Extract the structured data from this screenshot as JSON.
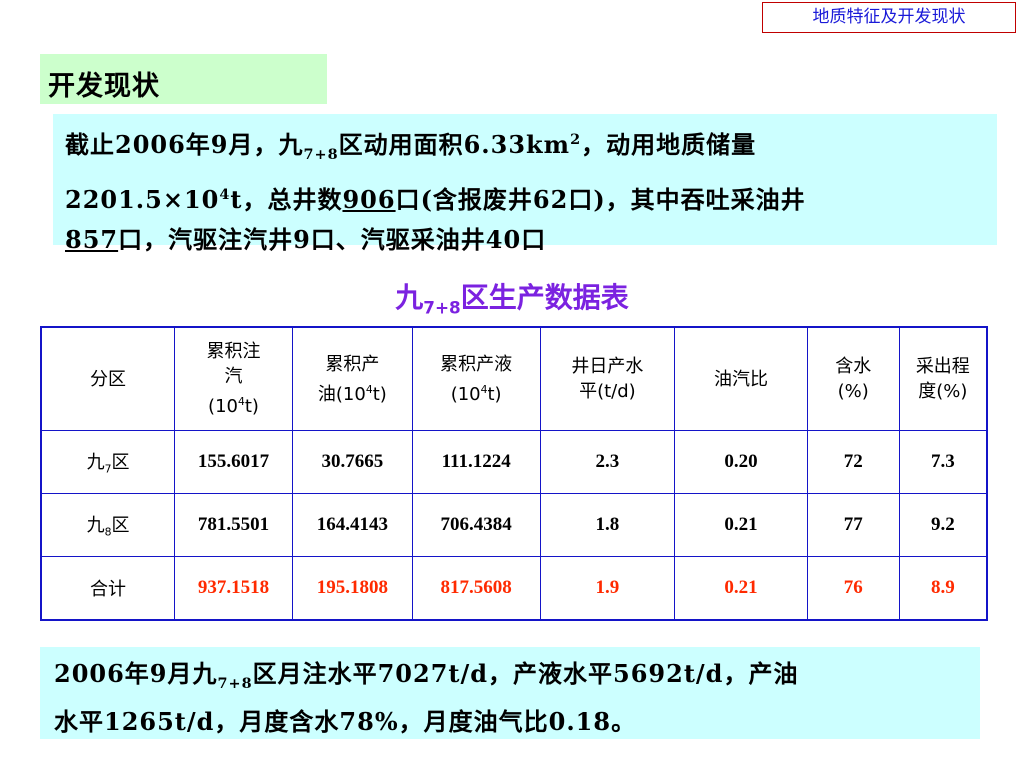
{
  "corner_tag": "地质特征及开发现状",
  "section_title": "开发现状",
  "intro": {
    "p1": "截止2006年9月，九",
    "sub1": "7+8",
    "p2": "区动用面积6.33km",
    "sup1": "2",
    "p3": "，动用地质储量",
    "p4": "2201.5×10",
    "sup2": "4",
    "p5": "t，总井数",
    "wells_total": "906",
    "p6": "口(含报废井62口)，其中吞吐采油井",
    "wells_huff": "857",
    "p7": "口，汽驱注汽井9口、汽驱采油井40口"
  },
  "table_title": {
    "pre": "九",
    "sub": "7+8",
    "post": "区生产数据表"
  },
  "table": {
    "headers": [
      {
        "a": "分区"
      },
      {
        "a": "累积注",
        "b": "汽",
        "c": "(10",
        "sup": "4",
        "d": "t)"
      },
      {
        "a": "累积产",
        "b": "油(10",
        "sup": "4",
        "d": "t)"
      },
      {
        "a": "累积产液",
        "b": "(10",
        "sup": "4",
        "d": "t)"
      },
      {
        "a": "井日产水",
        "b": "平(t/d)"
      },
      {
        "a": "油汽比"
      },
      {
        "a": "含水",
        "b": "(%)"
      },
      {
        "a": "采出程",
        "b": "度(%)"
      }
    ],
    "rows": [
      {
        "zone_pre": "九",
        "zone_sub": "7",
        "zone_post": "区",
        "cells": [
          "155.6017",
          "30.7665",
          "111.1224",
          "2.3",
          "0.20",
          "72",
          "7.3"
        ]
      },
      {
        "zone_pre": "九",
        "zone_sub": "8",
        "zone_post": "区",
        "cells": [
          "781.5501",
          "164.4143",
          "706.4384",
          "1.8",
          "0.21",
          "77",
          "9.2"
        ]
      },
      {
        "zone_pre": "合计",
        "zone_sub": "",
        "zone_post": "",
        "cells": [
          "937.1518",
          "195.1808",
          "817.5608",
          "1.9",
          "0.21",
          "76",
          "8.9"
        ]
      }
    ]
  },
  "note": {
    "p1": "2006年9月九",
    "sub1": "7+8",
    "p2": "区月注水平7027t/d，产液水平5692t/d，产油",
    "p3": "水平1265t/d，月度含水78%，月度油气比0.18。"
  },
  "colors": {
    "accent_purple": "#7b22e0",
    "total_red": "#ff2a00",
    "table_border": "#1414c8",
    "box_cyan": "#ccffff",
    "box_green": "#ccffcc"
  }
}
